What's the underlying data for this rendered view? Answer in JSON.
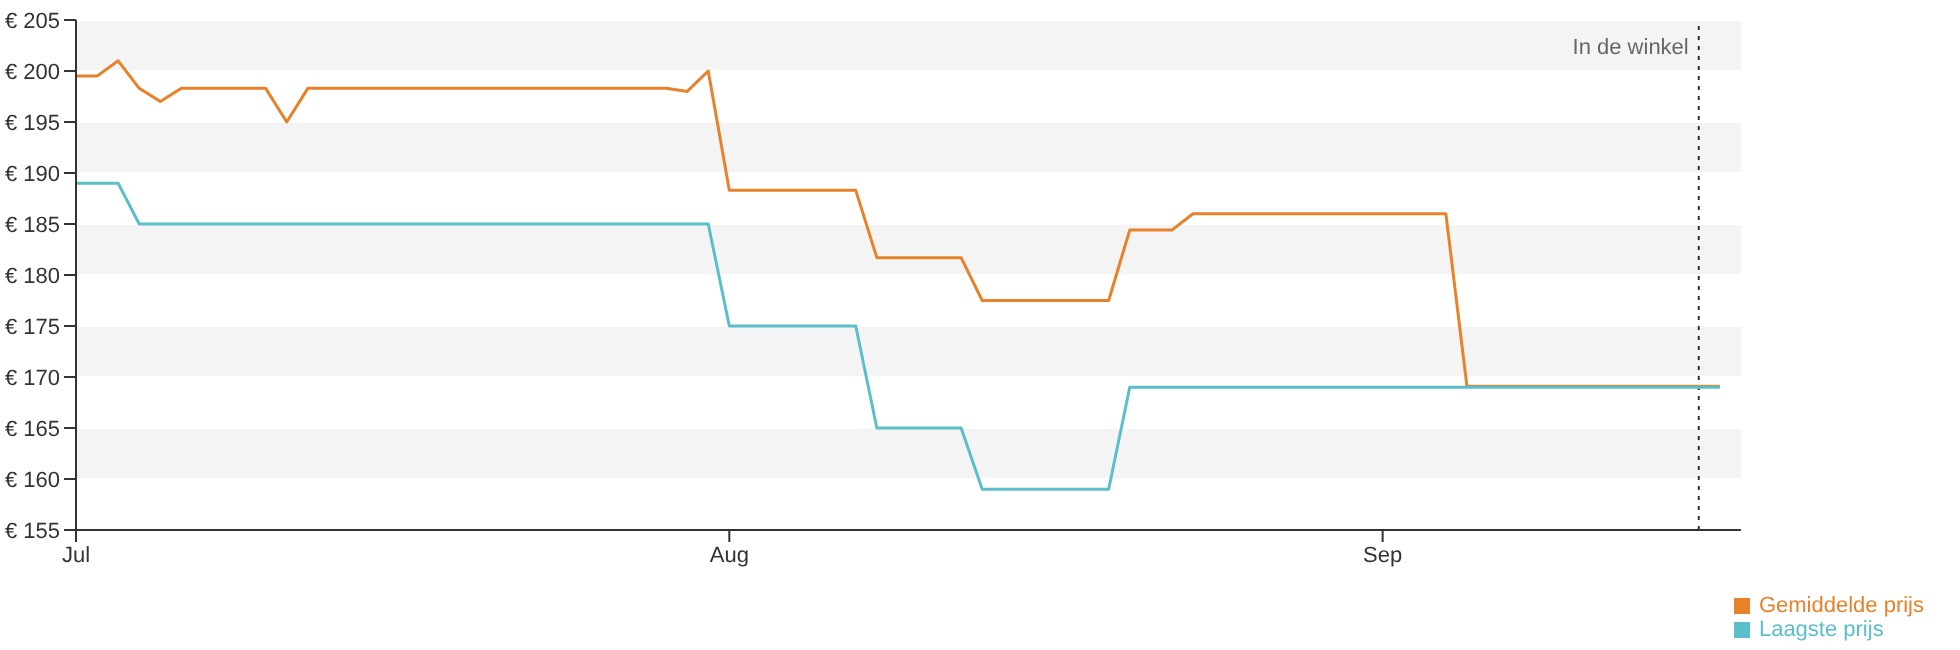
{
  "chart_data": {
    "type": "line",
    "series": [
      {
        "name": "Gemiddelde prijs",
        "color": "#e8822a",
        "x": [
          "--07-01",
          "--07-02",
          "--07-03",
          "--07-04",
          "--07-05",
          "--07-06",
          "--07-10",
          "--07-11",
          "--07-12",
          "--07-29",
          "--07-30",
          "--07-31",
          "--08-01",
          "--08-07",
          "--08-08",
          "--08-12",
          "--08-13",
          "--08-19",
          "--08-20",
          "--08-22",
          "--08-23",
          "--09-04",
          "--09-05",
          "--09-17"
        ],
        "values": [
          199.5,
          199.5,
          201,
          198.3,
          197,
          198.3,
          198.3,
          195,
          198.3,
          198.3,
          198,
          200,
          188.3,
          188.3,
          181.7,
          181.7,
          177.5,
          177.5,
          184.4,
          184.4,
          186,
          186,
          169.1,
          169.1
        ]
      },
      {
        "name": "Laagste prijs",
        "color": "#5bbfc9",
        "x": [
          "--07-01",
          "--07-03",
          "--07-04",
          "--07-31",
          "--08-01",
          "--08-07",
          "--08-08",
          "--08-12",
          "--08-13",
          "--08-19",
          "--08-20",
          "--09-17"
        ],
        "values": [
          189,
          189,
          185,
          185,
          175,
          175,
          165,
          165,
          159,
          159,
          169,
          169
        ]
      }
    ],
    "xlim": [
      "--07-01",
      "--09-18"
    ],
    "xticks": [
      {
        "value": "--07-01",
        "label": "Jul"
      },
      {
        "value": "--08-01",
        "label": "Aug"
      },
      {
        "value": "--09-01",
        "label": "Sep"
      }
    ],
    "ylim": [
      155,
      205
    ],
    "yticks": [
      {
        "value": 155,
        "label": "€ 155"
      },
      {
        "value": 160,
        "label": "€ 160"
      },
      {
        "value": 165,
        "label": "€ 165"
      },
      {
        "value": 170,
        "label": "€ 170"
      },
      {
        "value": 175,
        "label": "€ 175"
      },
      {
        "value": 180,
        "label": "€ 180"
      },
      {
        "value": 185,
        "label": "€ 185"
      },
      {
        "value": 190,
        "label": "€ 190"
      },
      {
        "value": 195,
        "label": "€ 195"
      },
      {
        "value": 200,
        "label": "€ 200"
      },
      {
        "value": 205,
        "label": "€ 205"
      }
    ],
    "ref_lines": [
      {
        "axis": "x",
        "value": "--09-16",
        "label": "In de winkel",
        "line_style": "dotted",
        "color": "#333333"
      }
    ],
    "grid": "y",
    "legend": "bottom right",
    "marker": "none",
    "line_style": "solid"
  }
}
